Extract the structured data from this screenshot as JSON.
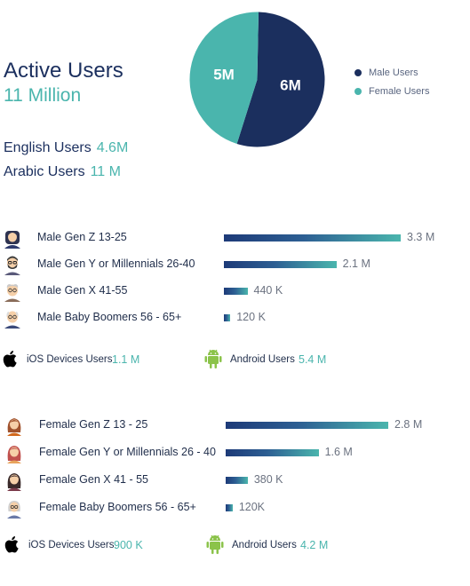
{
  "summary": {
    "title": "Active Users",
    "total": "11 Million",
    "english_label": "English Users",
    "english_value": "4.6M",
    "arabic_label": "Arabic Users",
    "arabic_value": "11 M"
  },
  "colors": {
    "navy": "#1b2f5e",
    "teal": "#4ab5ad",
    "bar_start": "#1d3a78",
    "bar_end": "#4ab5ad"
  },
  "chart_data": [
    {
      "type": "pie",
      "slices": [
        {
          "label": "Male Users",
          "value": 6,
          "display": "6M",
          "color": "#1b2f5e"
        },
        {
          "label": "Female Users",
          "value": 5,
          "display": "5M",
          "color": "#4ab5ad"
        }
      ],
      "legend": [
        "Male Users",
        "Female Users"
      ],
      "legend_position": "right"
    },
    {
      "type": "bar",
      "orientation": "horizontal",
      "categories": [
        "Male Gen Z 13-25",
        "Male Gen Y or Millennials 26-40",
        "Male Gen X 41-55",
        "Male Baby Boomers 56 - 65+"
      ],
      "values": [
        3.3,
        2.1,
        0.44,
        0.12
      ],
      "value_labels": [
        "3.3 M",
        "2.1 M",
        "440 K",
        "120 K"
      ],
      "unit": "million",
      "icons": [
        "young-man-avatar-icon",
        "bearded-man-avatar-icon",
        "older-man-avatar-icon",
        "elderly-man-avatar-icon"
      ]
    },
    {
      "type": "bar",
      "orientation": "horizontal",
      "categories": [
        "Female Gen Z 13 - 25",
        "Female Gen Y or Millennials 26 - 40",
        "Female Gen X 41 - 55",
        "Female Baby Boomers 56 - 65+"
      ],
      "values": [
        2.8,
        1.6,
        0.38,
        0.12
      ],
      "value_labels": [
        "2.8 M",
        "1.6 M",
        "380 K",
        "120K"
      ],
      "unit": "million",
      "icons": [
        "young-woman-avatar-icon",
        "woman-avatar-icon",
        "dark-haired-woman-avatar-icon",
        "elderly-woman-avatar-icon"
      ]
    }
  ],
  "devices_male": {
    "ios_label": "iOS Devices Users",
    "ios_value": "1.1 M",
    "android_label": "Android Users",
    "android_value": "5.4 M"
  },
  "devices_female": {
    "ios_label": "iOS Devices Users",
    "ios_value": "900 K",
    "android_label": "Android Users",
    "android_value": "4.2 M"
  }
}
